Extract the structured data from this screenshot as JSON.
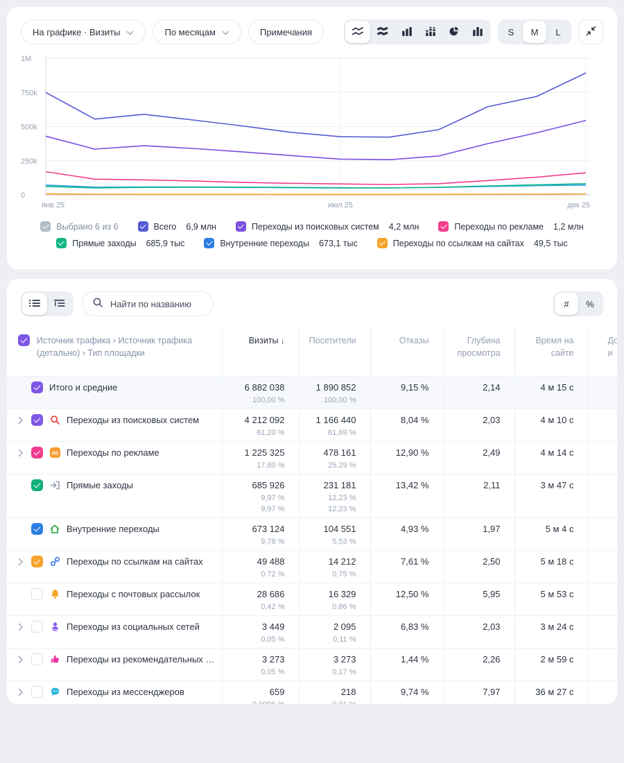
{
  "page": {
    "background": "#edeff4"
  },
  "chart_card": {
    "toolbar": {
      "metric_dropdown": "На графике · Визиты",
      "period_dropdown": "По месяцам",
      "notes_button": "Примечания",
      "chart_type_icons": [
        "line-chart-icon",
        "stacked-area-chart-icon",
        "bar-chart-icon",
        "stacked-bar-chart-icon",
        "pie-chart-icon",
        "column-chart-icon"
      ],
      "selected_chart_type_index": 0,
      "size_options": [
        "S",
        "M",
        "L"
      ],
      "selected_size": "M"
    },
    "chart_data": {
      "type": "line",
      "x_months": [
        "янв 25",
        "фев 25",
        "мар 25",
        "апр 25",
        "май 25",
        "июн 25",
        "июл 25",
        "авг 25",
        "сен 25",
        "окт 25",
        "ноя 25",
        "дек 25"
      ],
      "x_axis_labels": [
        {
          "index": 0,
          "label": "янв 25"
        },
        {
          "index": 6,
          "label": "июл 25"
        },
        {
          "index": 11,
          "label": "дек 25"
        }
      ],
      "y_ticks": [
        {
          "value": 0,
          "label": "0"
        },
        {
          "value": 250000,
          "label": "250k"
        },
        {
          "value": 500000,
          "label": "500k"
        },
        {
          "value": 750000,
          "label": "750k"
        },
        {
          "value": 1000000,
          "label": "1M"
        }
      ],
      "ylim": [
        0,
        1000000
      ],
      "grid": true,
      "legend_position": "bottom",
      "series": [
        {
          "name": "Всего",
          "color": "#5459d4",
          "values": [
            750000,
            555000,
            590000,
            548000,
            505000,
            458000,
            426000,
            423000,
            477000,
            645000,
            721000,
            893000
          ]
        },
        {
          "name": "Переходы из поисковых систем",
          "color": "#7a4fe0",
          "values": [
            430000,
            335000,
            360000,
            340000,
            315000,
            288000,
            262000,
            258000,
            285000,
            375000,
            455000,
            545000
          ]
        },
        {
          "name": "Переходы по рекламе",
          "color": "#f23d8c",
          "values": [
            170000,
            115000,
            110000,
            102000,
            92000,
            85000,
            80000,
            76000,
            82000,
            105000,
            130000,
            162000
          ]
        },
        {
          "name": "Прямые заходы",
          "color": "#12b886",
          "values": [
            62000,
            51000,
            55000,
            56000,
            55000,
            53000,
            51000,
            51000,
            56000,
            66000,
            74000,
            82000
          ]
        },
        {
          "name": "Внутренние переходы",
          "color": "#2b9fe8",
          "values": [
            72000,
            57000,
            58000,
            58000,
            57000,
            55000,
            53000,
            52000,
            55000,
            62000,
            68000,
            72000
          ]
        },
        {
          "name": "Переходы по ссылкам на сайтах",
          "color": "#f6a32c",
          "values": [
            8000,
            5000,
            4000,
            4000,
            4000,
            3500,
            3500,
            3500,
            4000,
            4500,
            5500,
            7500
          ]
        }
      ]
    },
    "legend": {
      "summary": {
        "label": "Выбрано 6 из 6",
        "color": "#b4bcc8"
      },
      "items": [
        {
          "label": "Всего",
          "value": "6,9 млн",
          "color": "#5459d4"
        },
        {
          "label": "Переходы из поисковых систем",
          "value": "4,2 млн",
          "color": "#7a4fe0"
        },
        {
          "label": "Переходы по рекламе",
          "value": "1,2 млн",
          "color": "#f23d8c"
        },
        {
          "label": "Прямые заходы",
          "value": "685,9 тыс",
          "color": "#12b886"
        },
        {
          "label": "Внутренние переходы",
          "value": "673,1 тыс",
          "color": "#2b7fe3"
        },
        {
          "label": "Переходы по ссылкам на сайтах",
          "value": "49,5 тыс",
          "color": "#f6a32c"
        }
      ]
    }
  },
  "table_card": {
    "toolbar": {
      "view_icons": [
        "flat-list-icon",
        "tree-list-icon"
      ],
      "selected_view_index": 0,
      "search_placeholder": "Найти по названию",
      "format_options": [
        "#",
        "%"
      ],
      "selected_format_index": 0
    },
    "table": {
      "dimension_header": "Источник трафика › Источник трафика (детально) › Тип площадки",
      "header_checkbox_color": "#7e57e6",
      "columns": [
        "Визиты",
        "Посетители",
        "Отказы",
        "Глубина просмотра",
        "Время на сайте"
      ],
      "sorted_column": "Визиты",
      "sort_arrow": "↓",
      "clipped_column_lines": [
        "До",
        "и"
      ],
      "rows": [
        {
          "name": "Итого и средние",
          "is_total": true,
          "chevron": false,
          "checked": true,
          "checkbox_color": "#7e57e6",
          "icon": null,
          "visits": "6 882 038",
          "visits_pct": [
            "100,00 %"
          ],
          "visitors": "1 890 852",
          "visitors_pct": [
            "100,00 %"
          ],
          "bounce": "9,15 %",
          "depth": "2,14",
          "time": "4 м 15 с"
        },
        {
          "name": "Переходы из поисковых систем",
          "chevron": true,
          "checked": true,
          "checkbox_color": "#7e57e6",
          "icon": "search-engine-icon",
          "visits": "4 212 092",
          "visits_pct": [
            "61,20 %"
          ],
          "visitors": "1 166 440",
          "visitors_pct": [
            "61,69 %"
          ],
          "bounce": "8,04 %",
          "depth": "2,03",
          "time": "4 м 10 с"
        },
        {
          "name": "Переходы по рекламе",
          "chevron": true,
          "checked": true,
          "checkbox_color": "#f03d8e",
          "icon": "ad-icon",
          "visits": "1 225 325",
          "visits_pct": [
            "17,80 %"
          ],
          "visitors": "478 161",
          "visitors_pct": [
            "25,29 %"
          ],
          "bounce": "12,90 %",
          "depth": "2,49",
          "time": "4 м 14 с"
        },
        {
          "name": "Прямые заходы",
          "chevron": false,
          "checked": true,
          "checkbox_color": "#12b17c",
          "icon": "direct-icon",
          "visits": "685 926",
          "visits_pct": [
            "9,97 %",
            "9,97 %"
          ],
          "visitors": "231 181",
          "visitors_pct": [
            "12,23 %",
            "12,23 %"
          ],
          "bounce": "13,42 %",
          "depth": "2,11",
          "time": "3 м 47 с"
        },
        {
          "name": "Внутренние переходы",
          "chevron": false,
          "checked": true,
          "checkbox_color": "#2b7fe3",
          "icon": "home-icon",
          "visits": "673 124",
          "visits_pct": [
            "9,78 %"
          ],
          "visitors": "104 551",
          "visitors_pct": [
            "5,53 %"
          ],
          "bounce": "4,93 %",
          "depth": "1,97",
          "time": "5 м 4 с"
        },
        {
          "name": "Переходы по ссылкам на сайтах",
          "chevron": true,
          "checked": true,
          "checkbox_color": "#f6a32c",
          "icon": "link-icon",
          "visits": "49 488",
          "visits_pct": [
            "0,72 %"
          ],
          "visitors": "14 212",
          "visitors_pct": [
            "0,75 %"
          ],
          "bounce": "7,61 %",
          "depth": "2,50",
          "time": "5 м 18 с"
        },
        {
          "name": "Переходы с почтовых рассылок",
          "chevron": false,
          "checked": false,
          "checkbox_color": null,
          "icon": "mail-icon",
          "visits": "28 686",
          "visits_pct": [
            "0,42 %"
          ],
          "visitors": "16 329",
          "visitors_pct": [
            "0,86 %"
          ],
          "bounce": "12,50 %",
          "depth": "5,95",
          "time": "5 м 53 с"
        },
        {
          "name": "Переходы из социальных сетей",
          "chevron": true,
          "checked": false,
          "checkbox_color": null,
          "icon": "social-icon",
          "visits": "3 449",
          "visits_pct": [
            "0,05 %"
          ],
          "visitors": "2 095",
          "visitors_pct": [
            "0,11 %"
          ],
          "bounce": "6,83 %",
          "depth": "2,03",
          "time": "3 м 24 с"
        },
        {
          "name": "Переходы из рекомендательных сист…",
          "chevron": true,
          "checked": false,
          "checkbox_color": null,
          "icon": "thumbs-up-icon",
          "visits": "3 273",
          "visits_pct": [
            "0,05 %"
          ],
          "visitors": "3 273",
          "visitors_pct": [
            "0,17 %"
          ],
          "bounce": "1,44 %",
          "depth": "2,26",
          "time": "2 м 59 с"
        },
        {
          "name": "Переходы из мессенджеров",
          "chevron": true,
          "checked": false,
          "checkbox_color": null,
          "icon": "messenger-icon",
          "visits": "659",
          "visits_pct": [
            "0,0096 %"
          ],
          "visitors": "218",
          "visitors_pct": [
            "0,01 %"
          ],
          "bounce": "9,74 %",
          "depth": "7,97",
          "time": "36 м 27 с"
        }
      ]
    }
  }
}
